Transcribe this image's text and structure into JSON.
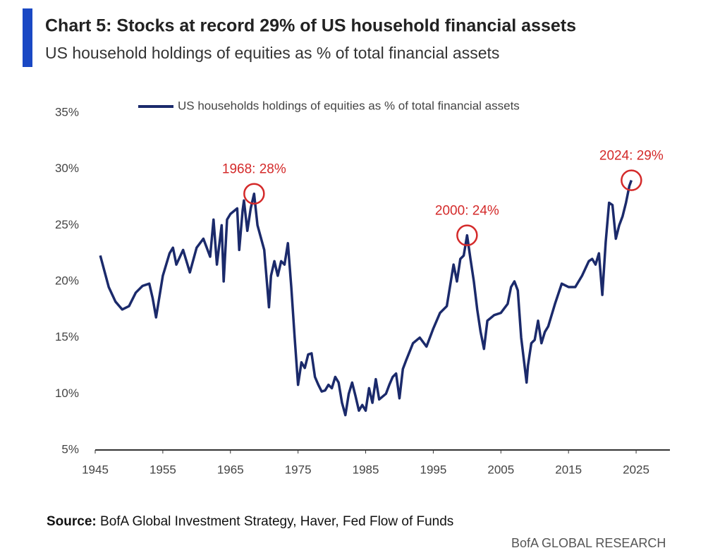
{
  "chart_data": {
    "type": "line",
    "title": "Chart 5: Stocks at record 29% of US household financial assets",
    "subtitle": "US household holdings of equities as % of total financial assets",
    "source_label": "Source:",
    "source": "BofA Global Investment Strategy, Haver, Fed Flow of Funds",
    "brand": "BofA GLOBAL RESEARCH",
    "x": [
      1945.75,
      1947,
      1948,
      1949,
      1950,
      1951,
      1952,
      1953,
      1953.5,
      1954,
      1955,
      1956,
      1956.5,
      1957,
      1958,
      1959,
      1960,
      1961,
      1962,
      1962.5,
      1963,
      1963.7,
      1964,
      1964.5,
      1965,
      1966,
      1966.3,
      1966.8,
      1967,
      1967.5,
      1968,
      1968.5,
      1969,
      1970,
      1970.7,
      1971,
      1971.5,
      1972,
      1972.5,
      1973,
      1973.5,
      1974,
      1974.5,
      1975,
      1975.5,
      1976,
      1976.5,
      1977,
      1977.5,
      1978,
      1978.5,
      1979,
      1979.5,
      1980,
      1980.5,
      1981,
      1981.5,
      1982,
      1982.5,
      1983,
      1983.5,
      1984,
      1984.5,
      1985,
      1985.5,
      1986,
      1986.5,
      1987,
      1988,
      1988.5,
      1989,
      1989.5,
      1990,
      1990.5,
      1991,
      1992,
      1993,
      1994,
      1995,
      1996,
      1997,
      1998,
      1998.5,
      1999,
      1999.5,
      2000,
      2000.5,
      2001,
      2001.5,
      2002,
      2002.5,
      2003,
      2004,
      2005,
      2006,
      2006.5,
      2007,
      2007.5,
      2008,
      2008.8,
      2009,
      2009.5,
      2010,
      2010.5,
      2011,
      2011.5,
      2012,
      2013,
      2014,
      2015,
      2016,
      2017,
      2018,
      2018.5,
      2019,
      2019.5,
      2020,
      2020.5,
      2021,
      2021.5,
      2022,
      2022.5,
      2023,
      2023.5,
      2024,
      2024.3
    ],
    "series": [
      {
        "name": "US households holdings of equities as % of total financial assets",
        "color": "#1b2a6b",
        "values": [
          22.3,
          19.5,
          18.2,
          17.5,
          17.8,
          19,
          19.6,
          19.8,
          18.5,
          16.8,
          20.5,
          22.5,
          23.0,
          21.5,
          22.8,
          20.8,
          23.0,
          23.8,
          22.2,
          25.5,
          21.5,
          25.0,
          20.0,
          25.5,
          26.0,
          26.5,
          22.8,
          26.3,
          27.2,
          24.5,
          26.5,
          27.8,
          25.0,
          22.8,
          17.7,
          20.5,
          21.8,
          20.5,
          21.8,
          21.5,
          23.4,
          19.5,
          15.0,
          10.8,
          12.8,
          12.3,
          13.5,
          13.6,
          11.5,
          10.8,
          10.2,
          10.3,
          10.8,
          10.5,
          11.5,
          11.0,
          9.2,
          8.1,
          10.0,
          11.0,
          9.8,
          8.5,
          9.0,
          8.5,
          10.5,
          9.2,
          11.3,
          9.5,
          10.0,
          10.8,
          11.5,
          11.8,
          9.6,
          12.2,
          13.0,
          14.5,
          15.0,
          14.2,
          15.8,
          17.2,
          17.8,
          21.5,
          20.0,
          22.0,
          22.3,
          24.1,
          22.0,
          20.0,
          17.5,
          15.5,
          14.0,
          16.5,
          17.0,
          17.2,
          18.0,
          19.5,
          20.0,
          19.2,
          15.0,
          11.0,
          12.5,
          14.5,
          14.8,
          16.5,
          14.5,
          15.5,
          16.0,
          18.0,
          19.8,
          19.5,
          19.5,
          20.5,
          21.8,
          22.0,
          21.5,
          22.5,
          18.8,
          23.5,
          27.0,
          26.8,
          23.8,
          25.0,
          25.8,
          27.0,
          28.5,
          29.0
        ]
      }
    ],
    "annotations": [
      {
        "text": "1968: 28%",
        "x": 1968.5,
        "y": 27.8
      },
      {
        "text": "2000: 24%",
        "x": 2000,
        "y": 24.1
      },
      {
        "text": "2024: 29%",
        "x": 2024.3,
        "y": 29.0
      }
    ],
    "annotation_color": "#d42a2a",
    "xlim": [
      1945,
      2030
    ],
    "xticks": [
      1945,
      1955,
      1965,
      1975,
      1985,
      1995,
      2005,
      2015,
      2025
    ],
    "ylim": [
      5,
      35
    ],
    "yticks": [
      {
        "value": 5,
        "label": "5%"
      },
      {
        "value": 10,
        "label": "10%"
      },
      {
        "value": 15,
        "label": "15%"
      },
      {
        "value": 20,
        "label": "20%"
      },
      {
        "value": 25,
        "label": "25%"
      },
      {
        "value": 30,
        "label": "30%"
      },
      {
        "value": 35,
        "label": "35%"
      }
    ],
    "legend": "top"
  }
}
